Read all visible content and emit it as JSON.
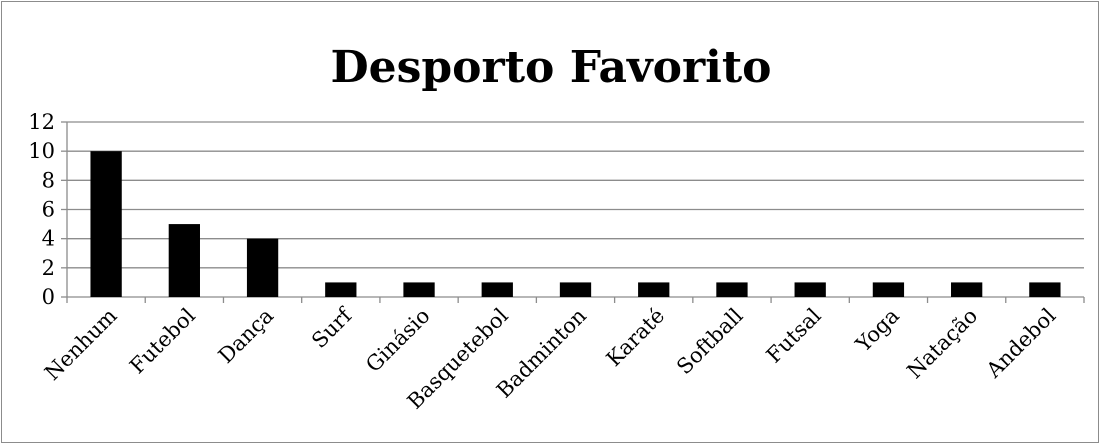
{
  "chart_data": {
    "type": "bar",
    "title": "Desporto Favorito",
    "xlabel": "",
    "ylabel": "",
    "categories": [
      "Nenhum",
      "Futebol",
      "Dança",
      "Surf",
      "Ginásio",
      "Basquetebol",
      "Badminton",
      "Karaté",
      "Softball",
      "Futsal",
      "Yoga",
      "Natação",
      "Andebol"
    ],
    "values": [
      10,
      5,
      4,
      1,
      1,
      1,
      1,
      1,
      1,
      1,
      1,
      1,
      1
    ],
    "ylim": [
      0,
      12
    ],
    "yticks": [
      0,
      2,
      4,
      6,
      8,
      10,
      12
    ],
    "grid": true,
    "legend": "none",
    "bar_color": "#000000",
    "grid_color": "#8c8c8c"
  }
}
